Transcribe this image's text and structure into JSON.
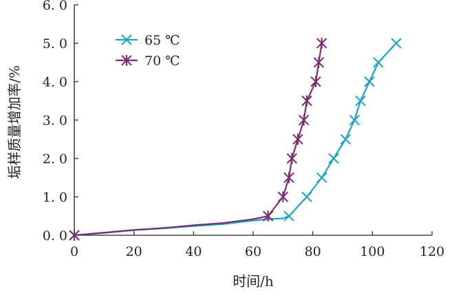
{
  "chart_data": {
    "type": "line",
    "xlabel": "时间/h",
    "ylabel": "垢样质量增加率/%",
    "xlim": [
      0,
      120
    ],
    "ylim": [
      0,
      6
    ],
    "x_ticks": [
      "0",
      "20",
      "40",
      "60",
      "80",
      "100",
      "120"
    ],
    "y_ticks": [
      "0. 0",
      "1. 0",
      "2. 0",
      "3. 0",
      "4. 0",
      "5. 0",
      "6. 0"
    ],
    "grid": false,
    "legend_position": "top-left",
    "series": [
      {
        "name": "65 ℃",
        "color": "#1ba3c6",
        "marker": "x",
        "line": [
          [
            0,
            0
          ],
          [
            10,
            0.06
          ],
          [
            20,
            0.13
          ],
          [
            30,
            0.18
          ],
          [
            40,
            0.24
          ],
          [
            50,
            0.29
          ],
          [
            55,
            0.34
          ],
          [
            60,
            0.38
          ],
          [
            65,
            0.42
          ],
          [
            70,
            0.44
          ],
          [
            72,
            0.5
          ],
          [
            78,
            1.0
          ],
          [
            83,
            1.5
          ],
          [
            87,
            2.0
          ],
          [
            91,
            2.5
          ],
          [
            94,
            3.0
          ],
          [
            96,
            3.5
          ],
          [
            99,
            4.0
          ],
          [
            102,
            4.5
          ],
          [
            108,
            5.0
          ]
        ],
        "markers": [
          [
            0,
            0
          ],
          [
            72,
            0.5
          ],
          [
            78,
            1.0
          ],
          [
            83,
            1.5
          ],
          [
            87,
            2.0
          ],
          [
            91,
            2.5
          ],
          [
            94,
            3.0
          ],
          [
            96,
            3.5
          ],
          [
            99,
            4.0
          ],
          [
            102,
            4.5
          ],
          [
            108,
            5.0
          ]
        ]
      },
      {
        "name": "70 ℃",
        "color": "#7b2d6b",
        "marker": "star",
        "line": [
          [
            0,
            0
          ],
          [
            10,
            0.07
          ],
          [
            20,
            0.14
          ],
          [
            30,
            0.19
          ],
          [
            40,
            0.26
          ],
          [
            50,
            0.32
          ],
          [
            55,
            0.37
          ],
          [
            60,
            0.42
          ],
          [
            65,
            0.5
          ],
          [
            70,
            1.0
          ],
          [
            72,
            1.5
          ],
          [
            73,
            2.0
          ],
          [
            75,
            2.5
          ],
          [
            77,
            3.0
          ],
          [
            78,
            3.5
          ],
          [
            81,
            4.0
          ],
          [
            82,
            4.5
          ],
          [
            83,
            5.0
          ]
        ],
        "markers": [
          [
            0,
            0
          ],
          [
            65,
            0.5
          ],
          [
            70,
            1.0
          ],
          [
            72,
            1.5
          ],
          [
            73,
            2.0
          ],
          [
            75,
            2.5
          ],
          [
            77,
            3.0
          ],
          [
            78,
            3.5
          ],
          [
            81,
            4.0
          ],
          [
            82,
            4.5
          ],
          [
            83,
            5.0
          ]
        ]
      }
    ]
  }
}
